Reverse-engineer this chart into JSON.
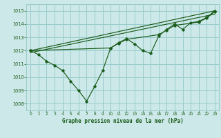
{
  "title": "Graphe pression niveau de la mer (hPa)",
  "background_color": "#cce8e8",
  "grid_color": "#99cccc",
  "line_color": "#1a5c1a",
  "xlim": [
    -0.5,
    23.5
  ],
  "ylim": [
    1007.5,
    1015.5
  ],
  "yticks": [
    1008,
    1009,
    1010,
    1011,
    1012,
    1013,
    1014,
    1015
  ],
  "xticks": [
    0,
    1,
    2,
    3,
    4,
    5,
    6,
    7,
    8,
    9,
    10,
    11,
    12,
    13,
    14,
    15,
    16,
    17,
    18,
    19,
    20,
    21,
    22,
    23
  ],
  "series1_x": [
    0,
    1,
    2,
    3,
    4,
    5,
    6,
    7,
    8,
    9,
    10,
    11,
    12,
    13,
    14,
    15,
    16,
    17,
    18,
    19,
    20,
    21,
    22,
    23
  ],
  "series1_y": [
    1012.0,
    1011.7,
    1011.2,
    1010.9,
    1010.5,
    1009.7,
    1009.0,
    1008.2,
    1009.3,
    1010.5,
    1012.2,
    1012.6,
    1012.9,
    1012.5,
    1012.0,
    1011.8,
    1013.1,
    1013.6,
    1014.0,
    1013.6,
    1014.1,
    1014.2,
    1014.5,
    1015.0
  ],
  "series2_x": [
    0,
    10,
    11,
    12,
    16,
    17,
    18,
    21,
    22,
    23
  ],
  "series2_y": [
    1012.0,
    1012.2,
    1012.55,
    1012.85,
    1013.2,
    1013.55,
    1013.9,
    1014.15,
    1014.45,
    1014.95
  ],
  "trend1_x": [
    0,
    23
  ],
  "trend1_y": [
    1012.0,
    1015.0
  ],
  "trend2_x": [
    0,
    23
  ],
  "trend2_y": [
    1011.85,
    1014.75
  ]
}
